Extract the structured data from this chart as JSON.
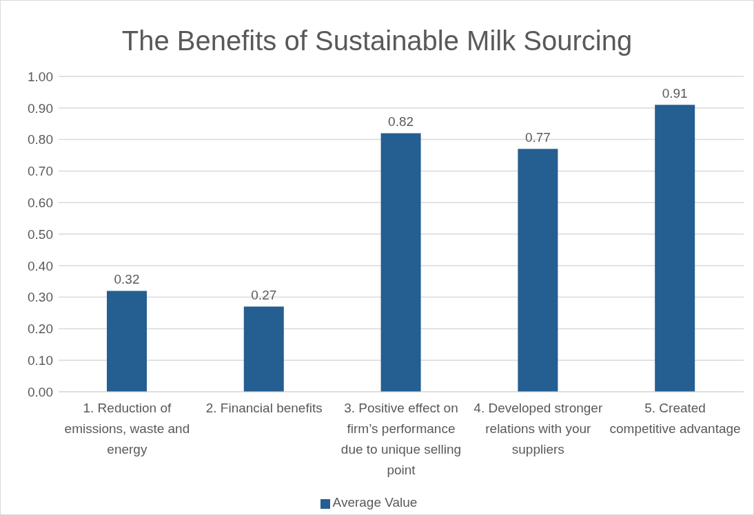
{
  "chart_data": {
    "type": "bar",
    "title": "The Benefits of Sustainable Milk Sourcing",
    "categories": [
      "1. Reduction of emissions, waste and energy",
      "2. Financial benefits",
      "3. Positive effect on firm’s performance due to unique selling point",
      "4. Developed stronger relations with your suppliers",
      "5. Created competitive advantage"
    ],
    "series": [
      {
        "name": "Average Value",
        "color": "#255e91",
        "values": [
          0.32,
          0.27,
          0.82,
          0.77,
          0.91
        ]
      }
    ],
    "ylim": [
      0,
      1
    ],
    "yticks": [
      {
        "value": 0,
        "label": "0.00"
      },
      {
        "value": 0.1,
        "label": "0.10"
      },
      {
        "value": 0.2,
        "label": "0.20"
      },
      {
        "value": 0.3,
        "label": "0.30"
      },
      {
        "value": 0.4,
        "label": "0.40"
      },
      {
        "value": 0.5,
        "label": "0.50"
      },
      {
        "value": 0.6,
        "label": "0.60"
      },
      {
        "value": 0.7,
        "label": "0.70"
      },
      {
        "value": 0.8,
        "label": "0.80"
      },
      {
        "value": 0.9,
        "label": "0.90"
      },
      {
        "value": 1,
        "label": "1.00"
      }
    ],
    "grid": "y",
    "legend": "bottom",
    "data_labels": true
  }
}
